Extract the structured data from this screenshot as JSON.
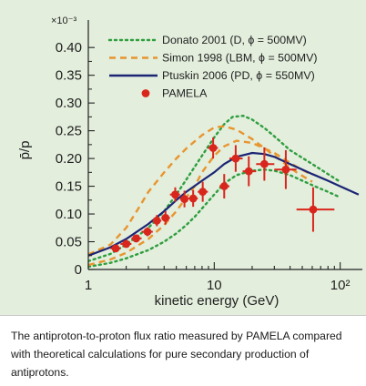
{
  "figure": {
    "background": "#e3eedd"
  },
  "caption": "The antiproton-to-proton flux ratio measured by PAMELA compared with theoretical calculations for pure secondary production of antiprotons.",
  "chart_data": {
    "type": "scatter",
    "xlabel": "kinetic energy (GeV)",
    "ylabel": "p̄/p",
    "y_multiplier": "×10⁻³",
    "x_scale": "log",
    "xlim": [
      1,
      150
    ],
    "ylim": [
      0,
      0.42
    ],
    "x_ticks": [
      {
        "value": 1,
        "label": "1"
      },
      {
        "value": 10,
        "label": "10"
      },
      {
        "value": 100,
        "label": "10²"
      }
    ],
    "y_ticks": [
      {
        "value": 0,
        "label": "0"
      },
      {
        "value": 0.05,
        "label": "0.05"
      },
      {
        "value": 0.1,
        "label": "0.10"
      },
      {
        "value": 0.15,
        "label": "0.15"
      },
      {
        "value": 0.2,
        "label": "0.20"
      },
      {
        "value": 0.25,
        "label": "0.25"
      },
      {
        "value": 0.3,
        "label": "0.30"
      },
      {
        "value": 0.35,
        "label": "0.35"
      },
      {
        "value": 0.4,
        "label": "0.40"
      }
    ],
    "grid": false,
    "legend_position": "top-right",
    "series": [
      {
        "name": "Donato 2001 (D, ϕ = 500MV)",
        "kind": "band",
        "style": "dotted",
        "color": "#2e9e3e",
        "upper": [
          [
            1,
            0.015
          ],
          [
            1.5,
            0.028
          ],
          [
            2,
            0.045
          ],
          [
            3,
            0.075
          ],
          [
            4,
            0.105
          ],
          [
            5,
            0.135
          ],
          [
            6,
            0.162
          ],
          [
            7,
            0.185
          ],
          [
            8,
            0.205
          ],
          [
            10,
            0.238
          ],
          [
            12,
            0.262
          ],
          [
            14,
            0.275
          ],
          [
            17,
            0.277
          ],
          [
            20,
            0.27
          ],
          [
            25,
            0.255
          ],
          [
            30,
            0.24
          ],
          [
            40,
            0.215
          ],
          [
            60,
            0.19
          ],
          [
            80,
            0.172
          ],
          [
            100,
            0.158
          ]
        ],
        "lower": [
          [
            1,
            0.005
          ],
          [
            1.5,
            0.012
          ],
          [
            2,
            0.02
          ],
          [
            3,
            0.035
          ],
          [
            4,
            0.05
          ],
          [
            5,
            0.065
          ],
          [
            6,
            0.08
          ],
          [
            7,
            0.095
          ],
          [
            8,
            0.11
          ],
          [
            10,
            0.135
          ],
          [
            12,
            0.155
          ],
          [
            15,
            0.17
          ],
          [
            20,
            0.178
          ],
          [
            25,
            0.18
          ],
          [
            30,
            0.178
          ],
          [
            40,
            0.17
          ],
          [
            60,
            0.152
          ],
          [
            80,
            0.14
          ],
          [
            100,
            0.13
          ]
        ]
      },
      {
        "name": "Simon 1998 (LBM, ϕ = 500MV)",
        "kind": "band",
        "style": "dashed",
        "color": "#e8952e",
        "upper": [
          [
            1,
            0.027
          ],
          [
            1.5,
            0.045
          ],
          [
            2,
            0.075
          ],
          [
            2.5,
            0.11
          ],
          [
            3,
            0.14
          ],
          [
            4,
            0.175
          ],
          [
            5,
            0.2
          ],
          [
            6,
            0.218
          ],
          [
            8,
            0.242
          ],
          [
            10,
            0.256
          ],
          [
            12,
            0.258
          ],
          [
            15,
            0.252
          ],
          [
            20,
            0.235
          ],
          [
            30,
            0.205
          ],
          [
            45,
            0.175
          ],
          [
            60,
            0.158
          ]
        ],
        "lower": [
          [
            1,
            0.008
          ],
          [
            1.5,
            0.018
          ],
          [
            2,
            0.03
          ],
          [
            3,
            0.055
          ],
          [
            4,
            0.08
          ],
          [
            5,
            0.105
          ],
          [
            6,
            0.13
          ],
          [
            7,
            0.15
          ],
          [
            8,
            0.175
          ],
          [
            10,
            0.205
          ],
          [
            12,
            0.222
          ],
          [
            15,
            0.232
          ],
          [
            20,
            0.228
          ],
          [
            30,
            0.21
          ],
          [
            45,
            0.185
          ],
          [
            60,
            0.17
          ]
        ]
      },
      {
        "name": "Ptuskin 2006 (PD, ϕ = 550MV)",
        "kind": "line",
        "style": "solid",
        "color": "#1c2574",
        "points": [
          [
            1,
            0.025
          ],
          [
            1.5,
            0.04
          ],
          [
            2,
            0.055
          ],
          [
            3,
            0.082
          ],
          [
            4,
            0.105
          ],
          [
            5,
            0.125
          ],
          [
            6,
            0.14
          ],
          [
            8,
            0.16
          ],
          [
            10,
            0.175
          ],
          [
            12,
            0.19
          ],
          [
            15,
            0.203
          ],
          [
            20,
            0.21
          ],
          [
            25,
            0.208
          ],
          [
            30,
            0.203
          ],
          [
            40,
            0.19
          ],
          [
            60,
            0.172
          ],
          [
            80,
            0.16
          ],
          [
            100,
            0.15
          ],
          [
            140,
            0.135
          ]
        ]
      },
      {
        "name": "PAMELA",
        "kind": "points",
        "color": "#d9261c",
        "points": [
          {
            "x": 1.65,
            "y": 0.038,
            "xlo": 1.5,
            "xhi": 1.8,
            "ylo": 0.033,
            "yhi": 0.043
          },
          {
            "x": 2.0,
            "y": 0.046,
            "xlo": 1.8,
            "xhi": 2.2,
            "ylo": 0.04,
            "yhi": 0.052
          },
          {
            "x": 2.4,
            "y": 0.056,
            "xlo": 2.2,
            "xhi": 2.65,
            "ylo": 0.049,
            "yhi": 0.063
          },
          {
            "x": 2.95,
            "y": 0.068,
            "xlo": 2.65,
            "xhi": 3.25,
            "ylo": 0.06,
            "yhi": 0.076
          },
          {
            "x": 3.5,
            "y": 0.088,
            "xlo": 3.25,
            "xhi": 3.8,
            "ylo": 0.078,
            "yhi": 0.098
          },
          {
            "x": 4.1,
            "y": 0.093,
            "xlo": 3.8,
            "xhi": 4.45,
            "ylo": 0.081,
            "yhi": 0.105
          },
          {
            "x": 4.9,
            "y": 0.135,
            "xlo": 4.45,
            "xhi": 5.35,
            "ylo": 0.122,
            "yhi": 0.148
          },
          {
            "x": 5.8,
            "y": 0.127,
            "xlo": 5.35,
            "xhi": 6.25,
            "ylo": 0.112,
            "yhi": 0.142
          },
          {
            "x": 6.8,
            "y": 0.128,
            "xlo": 6.25,
            "xhi": 7.4,
            "ylo": 0.113,
            "yhi": 0.143
          },
          {
            "x": 8.1,
            "y": 0.14,
            "xlo": 7.4,
            "xhi": 8.9,
            "ylo": 0.122,
            "yhi": 0.158
          },
          {
            "x": 9.8,
            "y": 0.219,
            "xlo": 8.9,
            "xhi": 10.7,
            "ylo": 0.2,
            "yhi": 0.238
          },
          {
            "x": 12.0,
            "y": 0.15,
            "xlo": 11.0,
            "xhi": 13.2,
            "ylo": 0.128,
            "yhi": 0.172
          },
          {
            "x": 14.8,
            "y": 0.2,
            "xlo": 13.2,
            "xhi": 16.8,
            "ylo": 0.176,
            "yhi": 0.224
          },
          {
            "x": 18.8,
            "y": 0.177,
            "xlo": 16.8,
            "xhi": 21.5,
            "ylo": 0.15,
            "yhi": 0.204
          },
          {
            "x": 25.0,
            "y": 0.19,
            "xlo": 21.5,
            "xhi": 30.0,
            "ylo": 0.16,
            "yhi": 0.22
          },
          {
            "x": 37.0,
            "y": 0.18,
            "xlo": 30.0,
            "xhi": 45.0,
            "ylo": 0.145,
            "yhi": 0.215
          },
          {
            "x": 61.0,
            "y": 0.108,
            "xlo": 45.0,
            "xhi": 90.0,
            "ylo": 0.068,
            "yhi": 0.148
          }
        ]
      }
    ]
  }
}
